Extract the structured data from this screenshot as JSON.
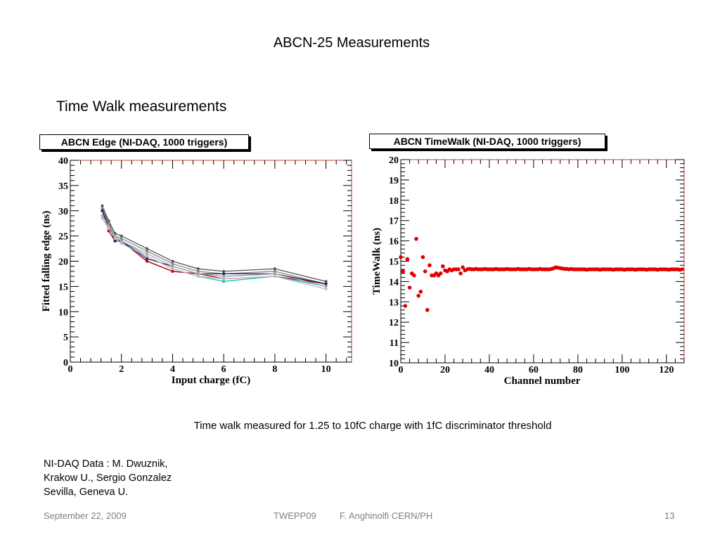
{
  "slide": {
    "title": "ABCN-25 Measurements",
    "heading": "Time Walk measurements",
    "caption": "Time walk measured for 1.25 to 10fC charge with 1fC discriminator threshold",
    "credit": [
      "NI-DAQ Data : M. Dwuznik,",
      "Krakow U., Sergio Gonzalez",
      "Sevilla, Geneva U."
    ],
    "footer": {
      "date": "September 22, 2009",
      "conference": "TWEPP09",
      "author": "F. Anghinolfi CERN/PH",
      "page": "13"
    }
  },
  "chart_data": [
    {
      "type": "line",
      "title": "ABCN Edge (NI-DAQ, 1000 triggers)",
      "xlabel": "Input charge (fC)",
      "ylabel": "Fitted falling edge (ns)",
      "xlim": [
        0,
        11
      ],
      "ylim": [
        0,
        40
      ],
      "xticks": [
        0,
        2,
        4,
        6,
        8,
        10
      ],
      "yticks": [
        0,
        5,
        10,
        15,
        20,
        25,
        30,
        35,
        40
      ],
      "grid": false,
      "x": [
        1.25,
        1.5,
        1.75,
        2,
        3,
        4,
        5,
        6,
        8,
        10
      ],
      "series": [
        {
          "color": "#000080",
          "values": [
            30.0,
            28.0,
            24.0,
            24.0,
            20.0,
            18.0,
            17.5,
            17.0,
            17.5,
            15.5
          ]
        },
        {
          "color": "#cc0000",
          "values": [
            30.0,
            26.0,
            24.0,
            24.0,
            20.0,
            18.0,
            17.5,
            16.5,
            17.0,
            15.5
          ]
        },
        {
          "color": "#20c0c0",
          "values": [
            29.0,
            27.0,
            24.5,
            24.0,
            21.0,
            18.5,
            17.0,
            16.0,
            17.0,
            15.0
          ]
        },
        {
          "color": "#555555",
          "values": [
            31.0,
            28.0,
            25.5,
            25.0,
            22.5,
            20.0,
            18.5,
            18.0,
            18.5,
            16.0
          ]
        },
        {
          "color": "#888888",
          "values": [
            30.5,
            27.5,
            25.0,
            24.5,
            22.0,
            19.5,
            18.0,
            17.5,
            18.0,
            15.5
          ]
        },
        {
          "color": "#222266",
          "values": [
            30.0,
            27.0,
            24.0,
            24.0,
            20.5,
            19.0,
            17.5,
            17.5,
            17.5,
            15.5
          ]
        },
        {
          "color": "#aaaaaa",
          "values": [
            29.0,
            27.0,
            25.0,
            24.0,
            21.5,
            19.0,
            17.5,
            17.0,
            17.5,
            15.0
          ]
        },
        {
          "color": "#bbbbbb",
          "values": [
            28.5,
            26.5,
            24.5,
            23.5,
            21.0,
            18.5,
            17.0,
            16.5,
            17.0,
            14.5
          ]
        }
      ]
    },
    {
      "type": "scatter",
      "title": "ABCN TimeWalk (NI-DAQ, 1000 triggers)",
      "xlabel": "Channel number",
      "ylabel": "TimeWalk (ns)",
      "xlim": [
        0,
        128
      ],
      "ylim": [
        10,
        20
      ],
      "xticks": [
        0,
        20,
        40,
        60,
        80,
        100,
        120
      ],
      "yticks": [
        10,
        11,
        12,
        13,
        14,
        15,
        16,
        17,
        18,
        19,
        20
      ],
      "grid": false,
      "color": "#e00000",
      "points": [
        [
          0,
          15.2
        ],
        [
          1,
          14.5
        ],
        [
          2,
          12.8
        ],
        [
          3,
          15.1
        ],
        [
          4,
          13.7
        ],
        [
          5,
          14.4
        ],
        [
          6,
          14.3
        ],
        [
          7,
          16.1
        ],
        [
          8,
          13.3
        ],
        [
          9,
          13.5
        ],
        [
          10,
          15.2
        ],
        [
          11,
          14.5
        ],
        [
          12,
          12.6
        ],
        [
          13,
          14.8
        ],
        [
          14,
          14.3
        ],
        [
          15,
          14.3
        ],
        [
          16,
          14.4
        ],
        [
          17,
          14.3
        ],
        [
          18,
          14.4
        ],
        [
          19,
          14.75
        ],
        [
          20,
          14.55
        ],
        [
          21,
          14.5
        ],
        [
          22,
          14.6
        ],
        [
          23,
          14.55
        ],
        [
          24,
          14.6
        ],
        [
          25,
          14.6
        ],
        [
          26,
          14.6
        ],
        [
          27,
          14.4
        ],
        [
          28,
          14.7
        ],
        [
          29,
          14.55
        ],
        [
          30,
          14.6
        ],
        [
          31,
          14.62
        ],
        [
          32,
          14.6
        ],
        [
          33,
          14.6
        ],
        [
          34,
          14.62
        ],
        [
          35,
          14.6
        ],
        [
          36,
          14.6
        ],
        [
          37,
          14.6
        ],
        [
          38,
          14.62
        ],
        [
          39,
          14.6
        ],
        [
          40,
          14.6
        ],
        [
          41,
          14.6
        ],
        [
          42,
          14.6
        ],
        [
          43,
          14.62
        ],
        [
          44,
          14.6
        ],
        [
          45,
          14.6
        ],
        [
          46,
          14.6
        ],
        [
          47,
          14.6
        ],
        [
          48,
          14.62
        ],
        [
          49,
          14.6
        ],
        [
          50,
          14.6
        ],
        [
          51,
          14.6
        ],
        [
          52,
          14.6
        ],
        [
          53,
          14.62
        ],
        [
          54,
          14.6
        ],
        [
          55,
          14.6
        ],
        [
          56,
          14.6
        ],
        [
          57,
          14.6
        ],
        [
          58,
          14.62
        ],
        [
          59,
          14.6
        ],
        [
          60,
          14.6
        ],
        [
          61,
          14.6
        ],
        [
          62,
          14.6
        ],
        [
          63,
          14.62
        ],
        [
          64,
          14.6
        ],
        [
          65,
          14.6
        ],
        [
          66,
          14.6
        ],
        [
          67,
          14.6
        ],
        [
          68,
          14.62
        ],
        [
          69,
          14.65
        ],
        [
          70,
          14.7
        ],
        [
          71,
          14.68
        ],
        [
          72,
          14.66
        ],
        [
          73,
          14.64
        ],
        [
          74,
          14.62
        ],
        [
          75,
          14.62
        ],
        [
          76,
          14.6
        ],
        [
          77,
          14.62
        ],
        [
          78,
          14.6
        ],
        [
          79,
          14.6
        ],
        [
          80,
          14.6
        ],
        [
          81,
          14.6
        ],
        [
          82,
          14.6
        ],
        [
          83,
          14.6
        ],
        [
          84,
          14.58
        ],
        [
          85,
          14.6
        ],
        [
          86,
          14.6
        ],
        [
          87,
          14.6
        ],
        [
          88,
          14.6
        ],
        [
          89,
          14.6
        ],
        [
          90,
          14.58
        ],
        [
          91,
          14.6
        ],
        [
          92,
          14.6
        ],
        [
          93,
          14.6
        ],
        [
          94,
          14.6
        ],
        [
          95,
          14.6
        ],
        [
          96,
          14.58
        ],
        [
          97,
          14.6
        ],
        [
          98,
          14.6
        ],
        [
          99,
          14.6
        ],
        [
          100,
          14.6
        ],
        [
          101,
          14.58
        ],
        [
          102,
          14.6
        ],
        [
          103,
          14.6
        ],
        [
          104,
          14.6
        ],
        [
          105,
          14.6
        ],
        [
          106,
          14.58
        ],
        [
          107,
          14.6
        ],
        [
          108,
          14.6
        ],
        [
          109,
          14.6
        ],
        [
          110,
          14.6
        ],
        [
          111,
          14.58
        ],
        [
          112,
          14.6
        ],
        [
          113,
          14.6
        ],
        [
          114,
          14.6
        ],
        [
          115,
          14.6
        ],
        [
          116,
          14.58
        ],
        [
          117,
          14.6
        ],
        [
          118,
          14.6
        ],
        [
          119,
          14.6
        ],
        [
          120,
          14.6
        ],
        [
          121,
          14.58
        ],
        [
          122,
          14.6
        ],
        [
          123,
          14.6
        ],
        [
          124,
          14.6
        ],
        [
          125,
          14.6
        ],
        [
          126,
          14.58
        ],
        [
          127,
          14.6
        ]
      ]
    }
  ]
}
